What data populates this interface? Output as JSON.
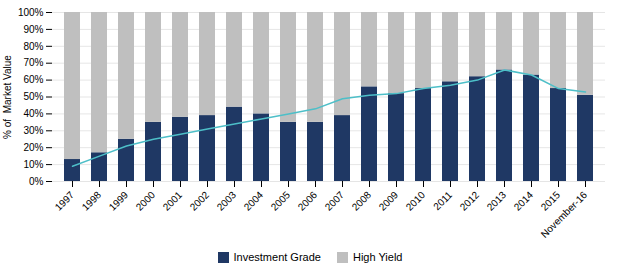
{
  "chart_data": {
    "type": "bar",
    "stacked": true,
    "categories": [
      "1997",
      "1998",
      "1999",
      "2000",
      "2001",
      "2002",
      "2003",
      "2004",
      "2005",
      "2006",
      "2007",
      "2008",
      "2009",
      "2010",
      "2011",
      "2012",
      "2013",
      "2014",
      "2015",
      "November-16"
    ],
    "series": [
      {
        "name": "Investment Grade",
        "color": "#1F3864",
        "values": [
          13,
          17,
          25,
          35,
          38,
          39,
          44,
          40,
          35,
          35,
          39,
          56,
          52,
          55,
          59,
          62,
          66,
          63,
          55,
          51
        ]
      },
      {
        "name": "High Yield",
        "color": "#BFBFBF",
        "values": [
          87,
          83,
          75,
          65,
          62,
          61,
          56,
          60,
          65,
          65,
          61,
          44,
          48,
          45,
          41,
          38,
          34,
          37,
          45,
          49
        ]
      },
      {
        "type": "line",
        "color": "#4DBFC8",
        "values": [
          9,
          15,
          21,
          25,
          28,
          31,
          34,
          37,
          40,
          43,
          49,
          51,
          52,
          55,
          57,
          60,
          66,
          63,
          55,
          53
        ]
      }
    ],
    "ylabel": "% of  Market Value",
    "ylim": [
      0,
      100
    ],
    "yticks": [
      {
        "value": 0,
        "label": "0%"
      },
      {
        "value": 10,
        "label": "10%"
      },
      {
        "value": 20,
        "label": "20%"
      },
      {
        "value": 30,
        "label": "30%"
      },
      {
        "value": 40,
        "label": "40%"
      },
      {
        "value": 50,
        "label": "50%"
      },
      {
        "value": 60,
        "label": "60%"
      },
      {
        "value": 70,
        "label": "70%"
      },
      {
        "value": 80,
        "label": "80%"
      },
      {
        "value": 90,
        "label": "90%"
      },
      {
        "value": 100,
        "label": "100%"
      }
    ],
    "grid": true,
    "legend": "bottom"
  }
}
